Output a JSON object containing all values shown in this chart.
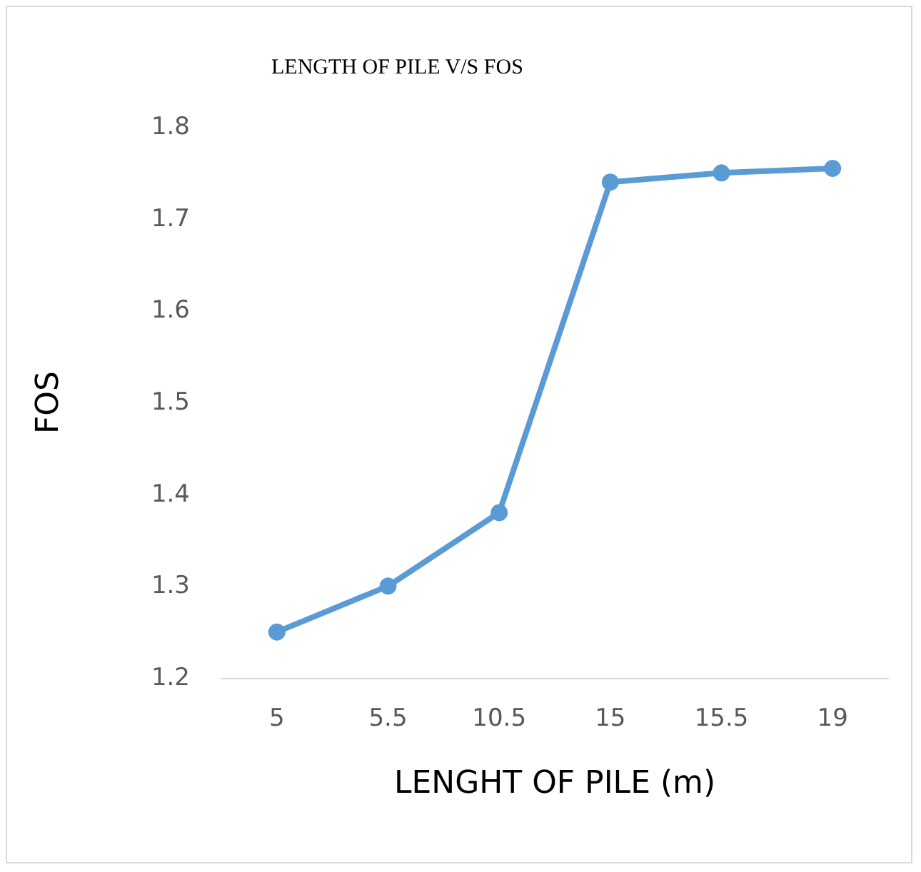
{
  "chart_data": {
    "type": "line",
    "title": "LENGTH OF PILE V/S FOS",
    "xlabel": "LENGHT OF PILE (m)",
    "ylabel": "FOS",
    "categories": [
      "5",
      "5.5",
      "10.5",
      "15",
      "15.5",
      "19"
    ],
    "series": [
      {
        "color": "#5b9bd5",
        "values": [
          1.25,
          1.3,
          1.38,
          1.74,
          1.75,
          1.755
        ]
      }
    ],
    "ylim": [
      1.2,
      1.8
    ],
    "yticks": [
      1.2,
      1.3,
      1.4,
      1.5,
      1.6,
      1.7,
      1.8
    ],
    "grid": false,
    "marker": "circle",
    "line_style": "solid"
  }
}
